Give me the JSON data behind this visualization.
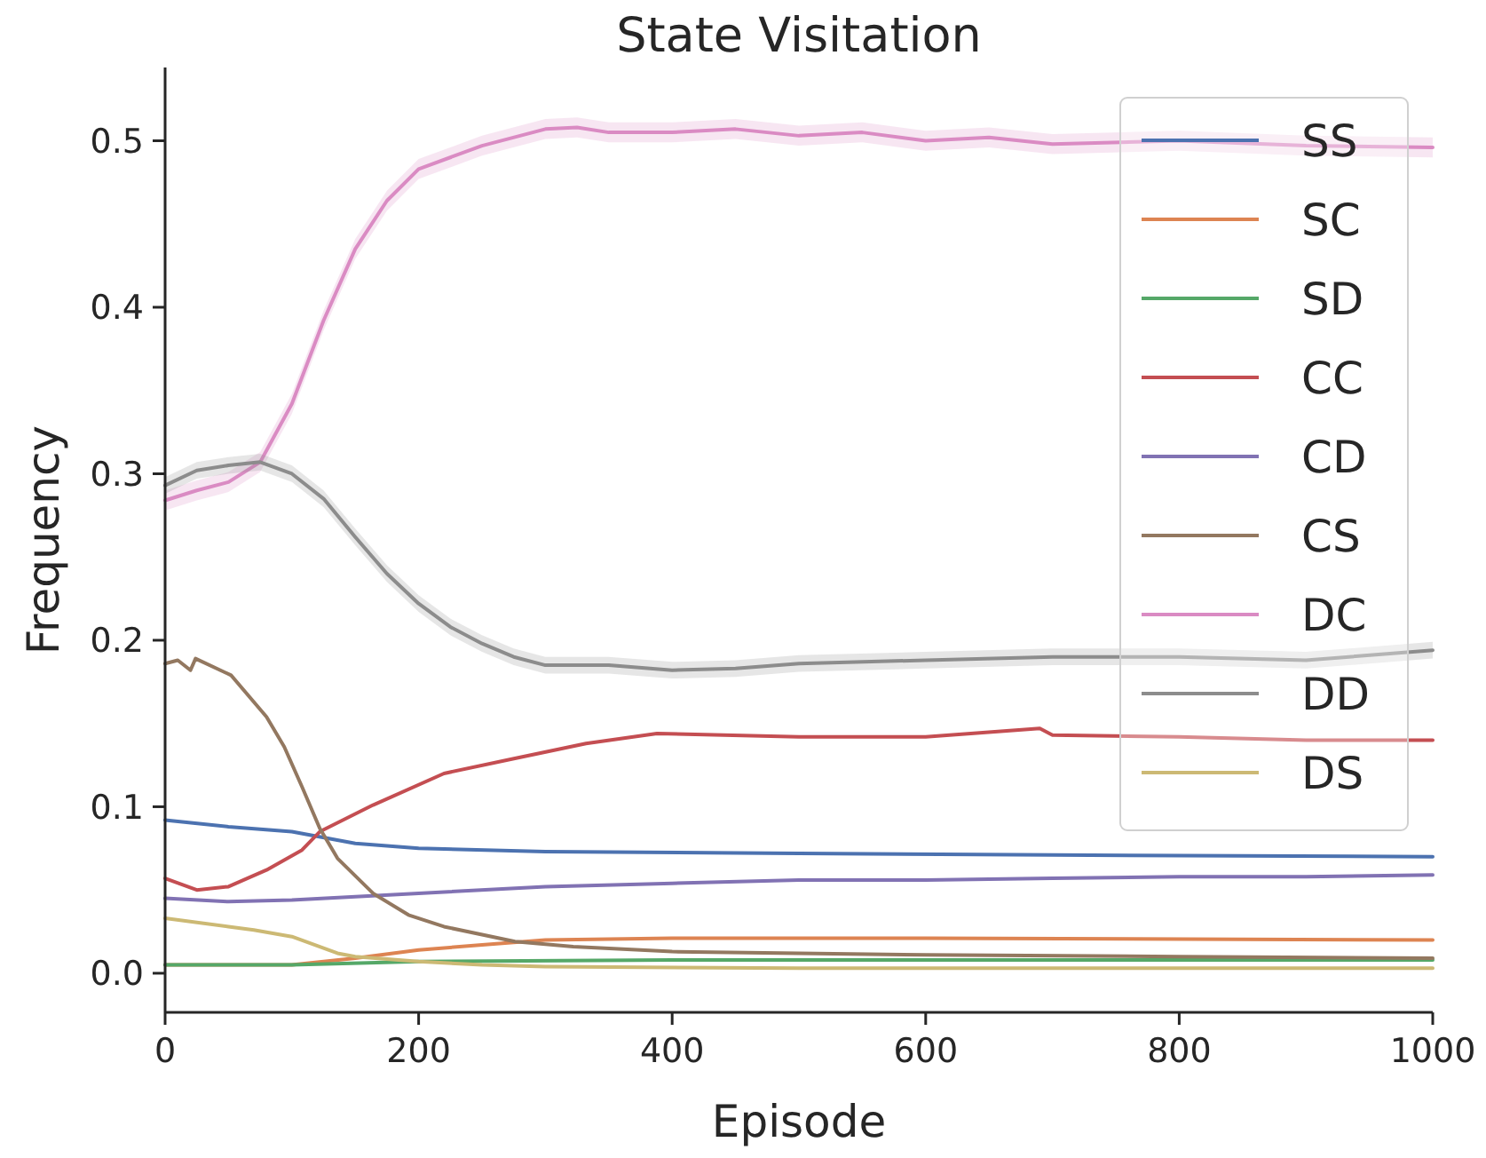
{
  "chart_data": {
    "type": "line",
    "title": "State Visitation",
    "xlabel": "Episode",
    "ylabel": "Frequency",
    "xlim": [
      0,
      1000
    ],
    "ylim": [
      -0.0235,
      0.544
    ],
    "xticks": [
      0,
      200,
      400,
      600,
      800,
      1000
    ],
    "yticks": [
      {
        "value": 0,
        "label": "0.0"
      },
      0.1,
      0.2,
      0.3,
      0.4,
      0.5
    ],
    "grid": false,
    "legend": "top right",
    "line_style": "solid",
    "marker": "none",
    "series": [
      {
        "name": "SS",
        "color": "#4c72b0",
        "x": [
          0,
          50,
          100,
          150,
          200,
          300,
          500,
          700,
          1000
        ],
        "values": [
          0.092,
          0.088,
          0.085,
          0.078,
          0.075,
          0.073,
          0.072,
          0.071,
          0.07
        ]
      },
      {
        "name": "SC",
        "color": "#dd8452",
        "x": [
          0,
          100,
          150,
          200,
          250,
          300,
          400,
          600,
          1000
        ],
        "values": [
          0.005,
          0.005,
          0.009,
          0.014,
          0.017,
          0.02,
          0.021,
          0.021,
          0.02
        ]
      },
      {
        "name": "SD",
        "color": "#55a868",
        "x": [
          0,
          100,
          200,
          400,
          1000
        ],
        "values": [
          0.005,
          0.005,
          0.007,
          0.008,
          0.008
        ]
      },
      {
        "name": "CC",
        "color": "#c44e52",
        "x": [
          0,
          25,
          50,
          80,
          108,
          122,
          164,
          220,
          276,
          332,
          388,
          500,
          600,
          690,
          700,
          800,
          900,
          1000
        ],
        "values": [
          0.057,
          0.05,
          0.052,
          0.062,
          0.074,
          0.085,
          0.101,
          0.12,
          0.129,
          0.138,
          0.144,
          0.142,
          0.142,
          0.147,
          0.143,
          0.142,
          0.14,
          0.14
        ]
      },
      {
        "name": "CD",
        "color": "#8172b3",
        "x": [
          0,
          50,
          100,
          200,
          300,
          400,
          500,
          600,
          700,
          800,
          900,
          1000
        ],
        "values": [
          0.045,
          0.043,
          0.044,
          0.048,
          0.052,
          0.054,
          0.056,
          0.056,
          0.057,
          0.058,
          0.058,
          0.059
        ]
      },
      {
        "name": "CS",
        "color": "#937860",
        "x": [
          0,
          10,
          20,
          24,
          52,
          80,
          94,
          108,
          122,
          136,
          164,
          192,
          220,
          276,
          322,
          400,
          500,
          600,
          800,
          1000
        ],
        "values": [
          0.186,
          0.188,
          0.182,
          0.189,
          0.179,
          0.154,
          0.136,
          0.112,
          0.087,
          0.069,
          0.048,
          0.035,
          0.028,
          0.019,
          0.016,
          0.013,
          0.012,
          0.011,
          0.01,
          0.009
        ]
      },
      {
        "name": "DC",
        "color": "#da8bc3",
        "x": [
          0,
          25,
          50,
          75,
          100,
          125,
          150,
          175,
          200,
          250,
          300,
          325,
          350,
          400,
          450,
          500,
          550,
          600,
          650,
          700,
          800,
          900,
          1000
        ],
        "values": [
          0.284,
          0.29,
          0.295,
          0.307,
          0.342,
          0.392,
          0.435,
          0.464,
          0.483,
          0.497,
          0.507,
          0.508,
          0.505,
          0.505,
          0.507,
          0.503,
          0.505,
          0.5,
          0.502,
          0.498,
          0.5,
          0.497,
          0.496
        ],
        "lower": [
          0.278,
          0.284,
          0.289,
          0.301,
          0.336,
          0.386,
          0.429,
          0.458,
          0.477,
          0.491,
          0.501,
          0.502,
          0.499,
          0.499,
          0.501,
          0.497,
          0.499,
          0.494,
          0.496,
          0.492,
          0.494,
          0.491,
          0.49
        ],
        "upper": [
          0.29,
          0.296,
          0.301,
          0.313,
          0.348,
          0.398,
          0.441,
          0.47,
          0.489,
          0.503,
          0.513,
          0.514,
          0.511,
          0.511,
          0.513,
          0.509,
          0.511,
          0.506,
          0.508,
          0.504,
          0.506,
          0.503,
          0.502
        ]
      },
      {
        "name": "DD",
        "color": "#8c8c8c",
        "x": [
          0,
          25,
          50,
          75,
          100,
          125,
          150,
          175,
          200,
          225,
          250,
          275,
          300,
          350,
          400,
          450,
          500,
          600,
          700,
          800,
          900,
          1000
        ],
        "values": [
          0.293,
          0.302,
          0.305,
          0.307,
          0.3,
          0.285,
          0.262,
          0.24,
          0.222,
          0.208,
          0.198,
          0.19,
          0.185,
          0.185,
          0.182,
          0.183,
          0.186,
          0.188,
          0.19,
          0.19,
          0.188,
          0.194
        ],
        "lower": [
          0.288,
          0.297,
          0.3,
          0.302,
          0.295,
          0.28,
          0.257,
          0.235,
          0.217,
          0.203,
          0.193,
          0.185,
          0.18,
          0.18,
          0.177,
          0.178,
          0.181,
          0.183,
          0.185,
          0.185,
          0.183,
          0.189
        ],
        "upper": [
          0.298,
          0.307,
          0.31,
          0.312,
          0.305,
          0.29,
          0.267,
          0.245,
          0.227,
          0.213,
          0.203,
          0.195,
          0.19,
          0.19,
          0.187,
          0.188,
          0.191,
          0.193,
          0.195,
          0.195,
          0.193,
          0.199
        ]
      },
      {
        "name": "DS",
        "color": "#ccb974",
        "x": [
          0,
          50,
          70,
          100,
          136,
          150,
          200,
          250,
          300,
          500,
          1000
        ],
        "values": [
          0.033,
          0.028,
          0.026,
          0.022,
          0.012,
          0.01,
          0.007,
          0.005,
          0.004,
          0.003,
          0.003
        ]
      }
    ]
  }
}
